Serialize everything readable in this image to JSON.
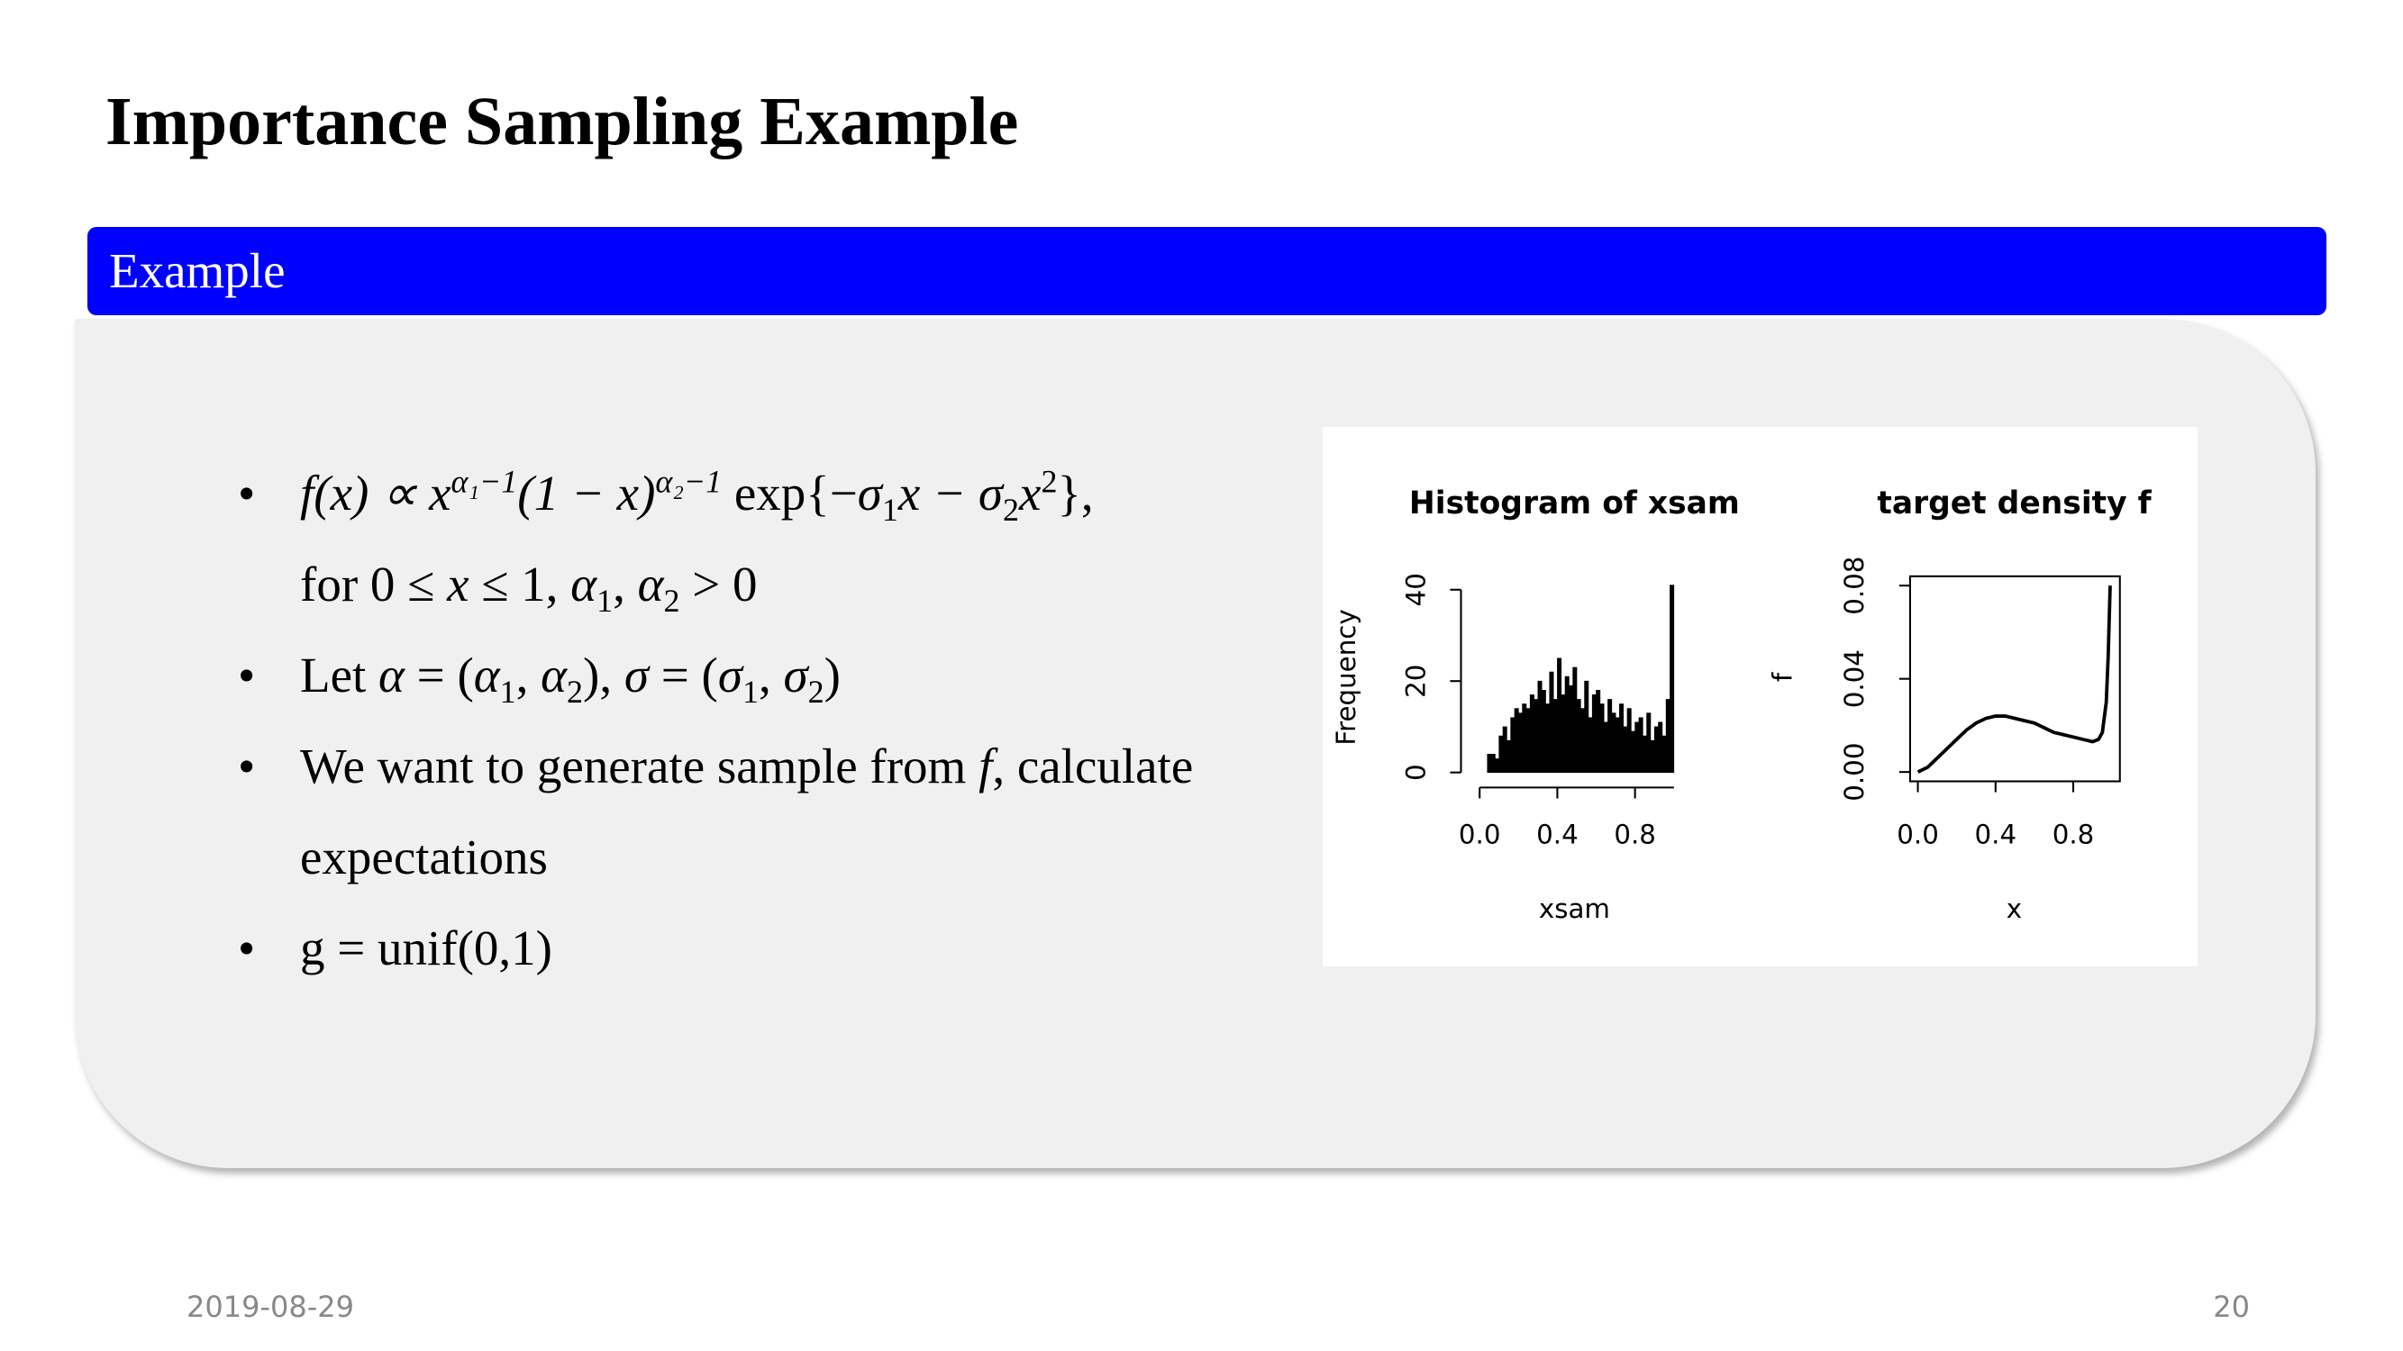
{
  "slide": {
    "title": "Importance Sampling Example",
    "block_title": "Example",
    "bullets": [
      {
        "lines": [
          [
            {
              "text": "f(x) ∝ x",
              "italic": true
            },
            {
              "text": "α₁−1",
              "italic": true,
              "pos": "sup"
            },
            {
              "text": "(1 − x)",
              "italic": true
            },
            {
              "text": "α₂−1",
              "italic": true,
              "pos": "sup"
            },
            {
              "text": " exp{−"
            },
            {
              "text": "σ",
              "italic": true
            },
            {
              "text": "1",
              "pos": "sub"
            },
            {
              "text": "x − σ",
              "italic": true
            },
            {
              "text": "2",
              "pos": "sub"
            },
            {
              "text": "x",
              "italic": true
            },
            {
              "text": "2",
              "pos": "sup"
            },
            {
              "text": "},"
            }
          ],
          [
            {
              "text": "for 0 ≤ "
            },
            {
              "text": "x",
              "italic": true
            },
            {
              "text": " ≤ 1, "
            },
            {
              "text": "α",
              "italic": true
            },
            {
              "text": "1",
              "pos": "sub"
            },
            {
              "text": ", "
            },
            {
              "text": "α",
              "italic": true
            },
            {
              "text": "2",
              "pos": "sub"
            },
            {
              "text": " > 0"
            }
          ]
        ]
      },
      {
        "lines": [
          [
            {
              "text": "Let "
            },
            {
              "text": "α",
              "italic": true
            },
            {
              "text": " = ("
            },
            {
              "text": "α",
              "italic": true
            },
            {
              "text": "1",
              "pos": "sub"
            },
            {
              "text": ", "
            },
            {
              "text": "α",
              "italic": true
            },
            {
              "text": "2",
              "pos": "sub"
            },
            {
              "text": "), "
            },
            {
              "text": "σ",
              "italic": true
            },
            {
              "text": " = ("
            },
            {
              "text": "σ",
              "italic": true
            },
            {
              "text": "1",
              "pos": "sub"
            },
            {
              "text": ", "
            },
            {
              "text": "σ",
              "italic": true
            },
            {
              "text": "2",
              "pos": "sub"
            },
            {
              "text": ")"
            }
          ]
        ]
      },
      {
        "lines": [
          [
            {
              "text": "We want to generate sample from "
            },
            {
              "text": "f",
              "italic": true
            },
            {
              "text": ", calculate"
            }
          ],
          [
            {
              "text": "expectations"
            }
          ]
        ]
      },
      {
        "lines": [
          [
            {
              "text": "g = unif(0,1)"
            }
          ]
        ]
      }
    ],
    "date": "2019-08-29",
    "page_number": 20
  },
  "chart_data": [
    {
      "type": "histogram",
      "title": "Histogram of xsam",
      "x_label": "xsam",
      "y_label": "Frequency",
      "color": "#000000",
      "bins": [
        0,
        0.02,
        0.04,
        0.06,
        0.08,
        0.1,
        0.12,
        0.14,
        0.16,
        0.18,
        0.2,
        0.22,
        0.24,
        0.26,
        0.28,
        0.3,
        0.32,
        0.34,
        0.36,
        0.38,
        0.4,
        0.42,
        0.44,
        0.46,
        0.48,
        0.5,
        0.52,
        0.54,
        0.56,
        0.58,
        0.6,
        0.62,
        0.64,
        0.66,
        0.68,
        0.7,
        0.72,
        0.74,
        0.76,
        0.78,
        0.8,
        0.82,
        0.84,
        0.86,
        0.88,
        0.9,
        0.92,
        0.94,
        0.96,
        0.98,
        1
      ],
      "values": [
        0,
        0,
        4,
        4,
        3,
        8,
        10,
        7,
        12,
        14,
        13,
        15,
        14,
        17,
        16,
        20,
        18,
        15,
        22,
        16,
        25,
        17,
        21,
        19,
        23,
        16,
        14,
        20,
        12,
        17,
        18,
        15,
        11,
        16,
        13,
        12,
        15,
        10,
        14,
        9,
        11,
        12,
        8,
        13,
        7,
        10,
        11,
        8,
        16,
        41
      ],
      "xlim": [
        -0.04,
        1.04
      ],
      "ylim": [
        -1.6,
        42.6
      ],
      "xticks": [
        {
          "value": 0,
          "label": "0.0"
        },
        0.4,
        0.8
      ],
      "yticks": [
        0,
        20,
        40
      ]
    },
    {
      "type": "line",
      "title": "target density f",
      "x_label": "x",
      "y_label": "f",
      "color": "#000000",
      "x": [
        0,
        0.05,
        0.1,
        0.15,
        0.2,
        0.25,
        0.3,
        0.35,
        0.4,
        0.45,
        0.5,
        0.55,
        0.6,
        0.65,
        0.7,
        0.75,
        0.8,
        0.85,
        0.9,
        0.93,
        0.95,
        0.97,
        0.98,
        0.99
      ],
      "values": [
        0,
        0.002,
        0.006,
        0.01,
        0.014,
        0.018,
        0.021,
        0.023,
        0.024,
        0.024,
        0.023,
        0.022,
        0.021,
        0.019,
        0.017,
        0.016,
        0.015,
        0.014,
        0.013,
        0.014,
        0.017,
        0.03,
        0.05,
        0.08
      ],
      "xlim": [
        -0.04,
        1.04
      ],
      "ylim": [
        -0.004,
        0.084
      ],
      "xticks": [
        {
          "value": 0,
          "label": "0.0"
        },
        0.4,
        0.8
      ],
      "yticks": [
        {
          "value": 0,
          "label": "0.00"
        },
        0.04,
        0.08
      ]
    }
  ]
}
